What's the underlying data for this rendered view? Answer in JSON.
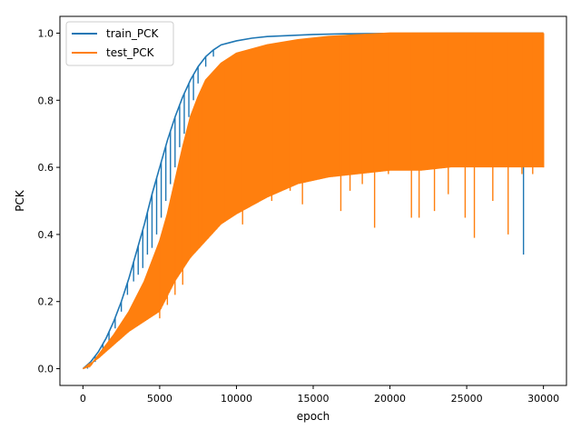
{
  "chart_data": {
    "type": "line",
    "title": "",
    "xlabel": "epoch",
    "ylabel": "PCK",
    "xlim": [
      -1500,
      31500
    ],
    "ylim": [
      -0.05,
      1.05
    ],
    "xticks": [
      0,
      5000,
      10000,
      15000,
      20000,
      25000,
      30000
    ],
    "yticks": [
      0.0,
      0.2,
      0.4,
      0.6,
      0.8,
      1.0
    ],
    "xtick_labels": [
      "0",
      "5000",
      "10000",
      "15000",
      "20000",
      "25000",
      "30000"
    ],
    "ytick_labels": [
      "0.0",
      "0.2",
      "0.4",
      "0.6",
      "0.8",
      "1.0"
    ],
    "grid": false,
    "legend": {
      "placement": "top-left",
      "entries": [
        "train_PCK",
        "test_PCK"
      ]
    },
    "series": [
      {
        "name": "train_PCK",
        "color": "#1f77b4",
        "upper_envelope": {
          "x": [
            0,
            500,
            1000,
            1500,
            2000,
            2500,
            3000,
            3500,
            4000,
            4500,
            5000,
            5500,
            6000,
            6500,
            7000,
            7500,
            8000,
            8500,
            9000,
            10000,
            11000,
            12000,
            13000,
            14000,
            15000,
            17000,
            20000,
            25000,
            30000
          ],
          "y": [
            0.0,
            0.02,
            0.05,
            0.09,
            0.14,
            0.2,
            0.27,
            0.35,
            0.43,
            0.52,
            0.6,
            0.68,
            0.75,
            0.81,
            0.86,
            0.9,
            0.93,
            0.95,
            0.965,
            0.977,
            0.985,
            0.99,
            0.992,
            0.994,
            0.996,
            0.998,
            0.999,
            1.0,
            1.0
          ]
        },
        "dips": {
          "x": [
            300,
            800,
            1300,
            1700,
            2100,
            2500,
            2900,
            3300,
            3600,
            3900,
            4200,
            4500,
            4800,
            5100,
            5400,
            5700,
            6000,
            6300,
            6600,
            6900,
            7200,
            7500,
            8000,
            8500,
            28700
          ],
          "y": [
            0.0,
            0.02,
            0.05,
            0.08,
            0.12,
            0.17,
            0.22,
            0.26,
            0.28,
            0.3,
            0.34,
            0.36,
            0.4,
            0.45,
            0.5,
            0.55,
            0.6,
            0.66,
            0.7,
            0.75,
            0.8,
            0.85,
            0.9,
            0.93,
            0.34
          ]
        }
      },
      {
        "name": "test_PCK",
        "color": "#ff7f0e",
        "upper_envelope": {
          "x": [
            0,
            500,
            1000,
            1500,
            2000,
            3000,
            4000,
            5000,
            5500,
            6000,
            6500,
            7000,
            7500,
            8000,
            9000,
            10000,
            12000,
            14000,
            16000,
            18000,
            20000,
            25000,
            30000
          ],
          "y": [
            0.0,
            0.01,
            0.04,
            0.07,
            0.1,
            0.17,
            0.26,
            0.38,
            0.46,
            0.56,
            0.66,
            0.75,
            0.81,
            0.86,
            0.91,
            0.94,
            0.965,
            0.98,
            0.99,
            0.995,
            1.0,
            1.0,
            1.0
          ]
        },
        "lower_envelope": {
          "x": [
            0,
            1000,
            2000,
            3000,
            4000,
            5000,
            6000,
            7000,
            8000,
            9000,
            10000,
            12000,
            14000,
            16000,
            18000,
            20000,
            22000,
            24000,
            26000,
            28000,
            30000
          ],
          "y": [
            0.0,
            0.03,
            0.07,
            0.11,
            0.14,
            0.17,
            0.26,
            0.33,
            0.38,
            0.43,
            0.46,
            0.51,
            0.55,
            0.57,
            0.58,
            0.59,
            0.59,
            0.6,
            0.6,
            0.6,
            0.6
          ]
        },
        "dips": {
          "x": [
            5000,
            5500,
            6000,
            6500,
            7000,
            7500,
            7800,
            8500,
            9200,
            10400,
            10900,
            12300,
            13500,
            14300,
            16800,
            17400,
            18200,
            19000,
            19900,
            21400,
            21900,
            22900,
            23800,
            24900,
            25500,
            26700,
            27700,
            28600,
            29300
          ],
          "y": [
            0.15,
            0.19,
            0.22,
            0.25,
            0.33,
            0.37,
            0.39,
            0.41,
            0.44,
            0.43,
            0.52,
            0.5,
            0.53,
            0.49,
            0.47,
            0.53,
            0.55,
            0.42,
            0.58,
            0.45,
            0.45,
            0.47,
            0.52,
            0.45,
            0.39,
            0.5,
            0.4,
            0.58,
            0.58
          ]
        },
        "final_value": {
          "x": 30000,
          "y": 0.6
        }
      }
    ]
  }
}
